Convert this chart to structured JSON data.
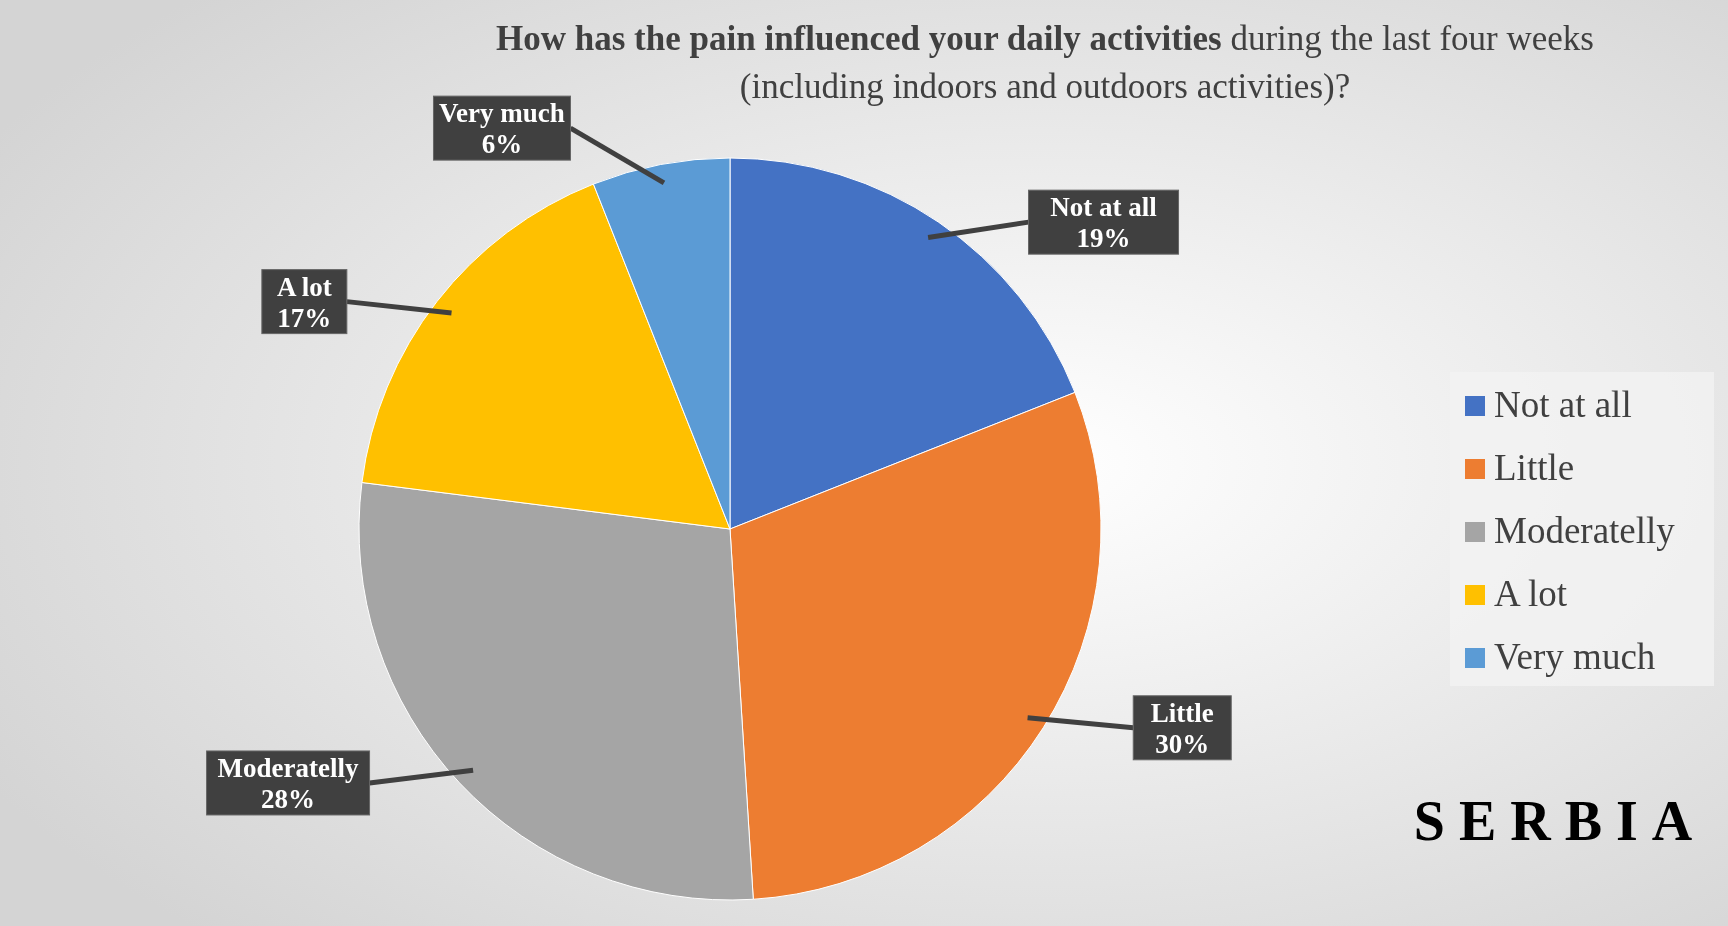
{
  "chart_data": {
    "type": "pie",
    "title": "How has the pain influenced your daily activities",
    "subtitle": "during the last four weeks (including indoors and outdoors activities)?",
    "categories": [
      "Not at all",
      "Little",
      "Moderatelly",
      "A lot",
      "Very much"
    ],
    "values": [
      19,
      30,
      28,
      17,
      6
    ],
    "colors": [
      "#4472c4",
      "#ed7d31",
      "#a5a5a5",
      "#ffc000",
      "#5b9bd5"
    ],
    "data_labels": true,
    "value_labels": [
      "19%",
      "30%",
      "28%",
      "17%",
      "6%"
    ],
    "legend": "right",
    "annotations": [
      "SERBIA"
    ]
  }
}
